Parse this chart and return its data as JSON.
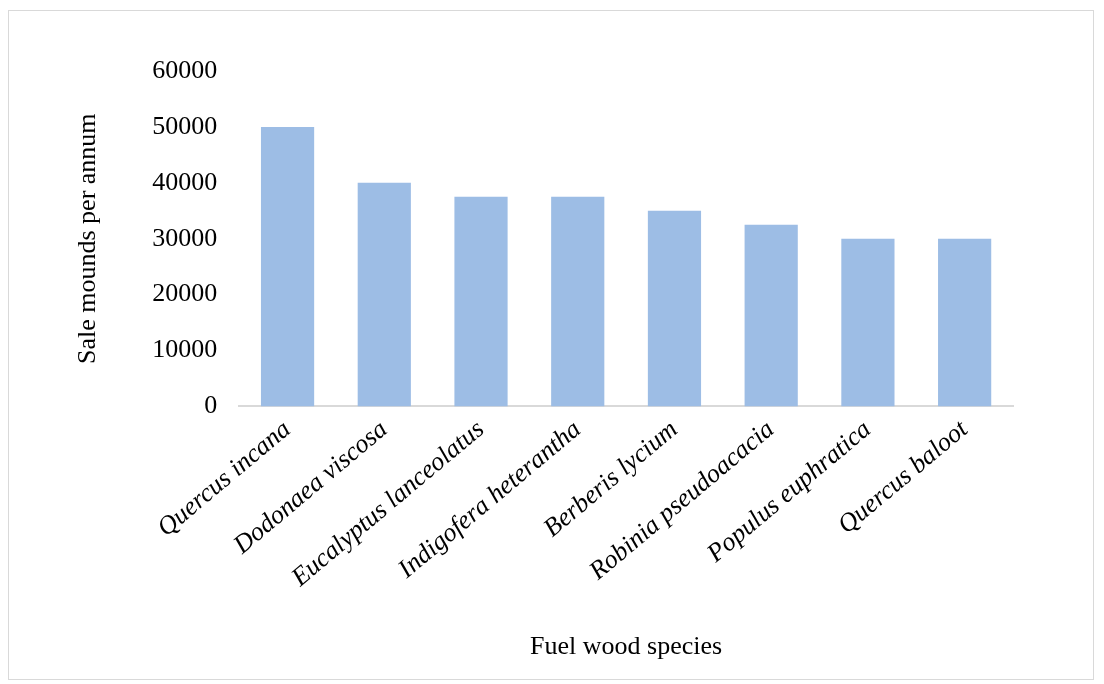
{
  "chart_data": {
    "type": "bar",
    "xlabel": "Fuel wood species",
    "ylabel": "Sale mounds per annum",
    "categories": [
      "Quercus incana",
      "Dodonaea viscosa",
      "Eucalyptus lanceolatus",
      "Indigofera heterantha",
      "Berberis lycium",
      "Robinia pseudoacacia",
      "Populus euphratica",
      "Quercus baloot"
    ],
    "values": [
      50000,
      40000,
      37500,
      37500,
      35000,
      32500,
      30000,
      30000
    ],
    "color": "#9dbde5",
    "ylim": [
      0,
      60000
    ],
    "yticks": [
      0,
      10000,
      20000,
      30000,
      40000,
      50000,
      60000
    ],
    "grid": false,
    "legend": false
  }
}
